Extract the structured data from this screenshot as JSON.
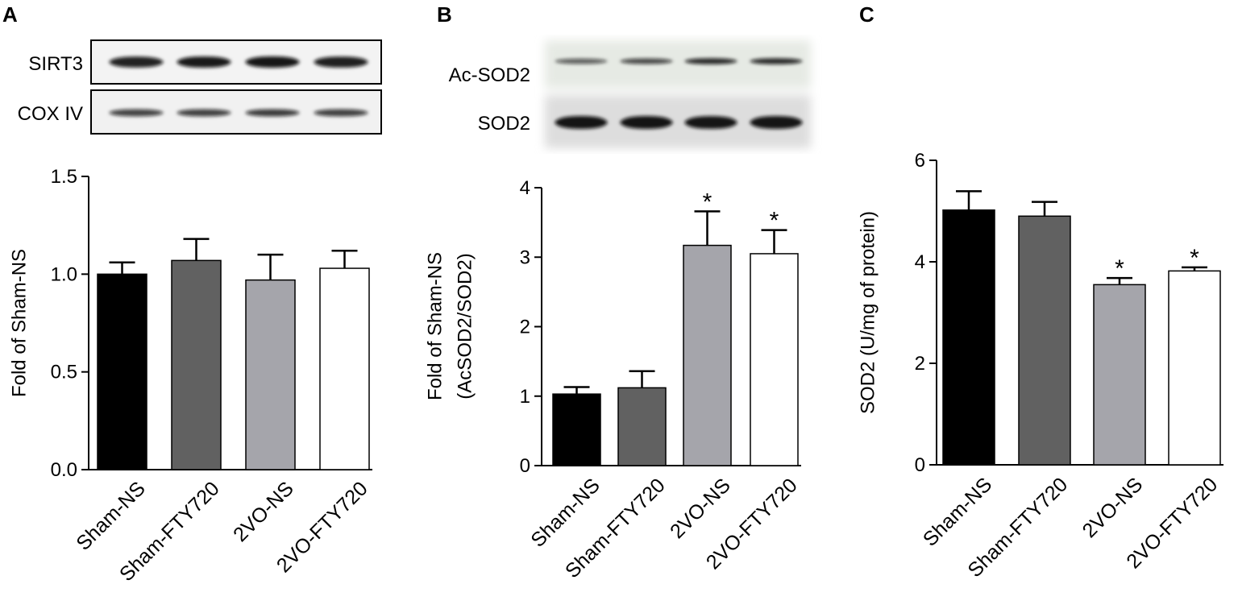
{
  "panels": [
    {
      "letter": "A",
      "blot": {
        "bands": [
          {
            "label": "SIRT3",
            "intensities": [
              0.92,
              0.97,
              0.99,
              0.93
            ]
          },
          {
            "label": "COX IV",
            "intensities": [
              0.72,
              0.74,
              0.76,
              0.74
            ]
          }
        ]
      }
    },
    {
      "letter": "B",
      "blot": {
        "bands": [
          {
            "label": "Ac-SOD2",
            "intensities": [
              0.55,
              0.68,
              0.86,
              0.86
            ]
          },
          {
            "label": "SOD2",
            "intensities": [
              1.0,
              1.0,
              0.98,
              0.99
            ]
          }
        ]
      }
    },
    {
      "letter": "C",
      "blot": null
    }
  ],
  "chart_data": [
    {
      "type": "bar",
      "panel": "A",
      "categories": [
        "Sham-NS",
        "Sham-FTY720",
        "2VO-NS",
        "2VO-FTY720"
      ],
      "values": [
        1.0,
        1.07,
        0.97,
        1.03
      ],
      "errors": [
        0.06,
        0.11,
        0.13,
        0.09
      ],
      "significance": [
        "",
        "",
        "",
        ""
      ],
      "bar_colors": [
        "#000000",
        "#616161",
        "#a5a5ab",
        "#ffffff"
      ],
      "ylabel": "Fold of Sham-NS",
      "ylabel_lines": [
        "Fold of Sham-NS"
      ],
      "ylim": [
        0,
        1.5
      ],
      "yticks": [
        0.0,
        0.5,
        1.0,
        1.5
      ],
      "ytick_labels": [
        "0.0",
        "0.5",
        "1.0",
        "1.5"
      ],
      "grid": false
    },
    {
      "type": "bar",
      "panel": "B",
      "categories": [
        "Sham-NS",
        "Sham-FTY720",
        "2VO-NS",
        "2VO-FTY720"
      ],
      "values": [
        1.03,
        1.12,
        3.17,
        3.05
      ],
      "errors": [
        0.1,
        0.24,
        0.49,
        0.34
      ],
      "significance": [
        "",
        "",
        "*",
        "*"
      ],
      "bar_colors": [
        "#000000",
        "#616161",
        "#a5a5ab",
        "#ffffff"
      ],
      "ylabel": "Fold of Sham-NS (AcSOD2/SOD2)",
      "ylabel_lines": [
        "Fold of Sham-NS",
        "(AcSOD2/SOD2)"
      ],
      "ylim": [
        0,
        4
      ],
      "yticks": [
        0,
        1,
        2,
        3,
        4
      ],
      "ytick_labels": [
        "0",
        "1",
        "2",
        "3",
        "4"
      ],
      "grid": false
    },
    {
      "type": "bar",
      "panel": "C",
      "categories": [
        "Sham-NS",
        "Sham-FTY720",
        "2VO-NS",
        "2VO-FTY720"
      ],
      "values": [
        5.02,
        4.9,
        3.55,
        3.82
      ],
      "errors": [
        0.37,
        0.28,
        0.13,
        0.07
      ],
      "significance": [
        "",
        "",
        "*",
        "*"
      ],
      "bar_colors": [
        "#000000",
        "#616161",
        "#a5a5ab",
        "#ffffff"
      ],
      "ylabel": "SOD2 (U/mg of protein)",
      "ylabel_lines": [
        "SOD2 (U/mg of protein)"
      ],
      "ylim": [
        0,
        6
      ],
      "yticks": [
        0,
        2,
        4,
        6
      ],
      "ytick_labels": [
        "0",
        "2",
        "4",
        "6"
      ],
      "grid": false
    }
  ]
}
